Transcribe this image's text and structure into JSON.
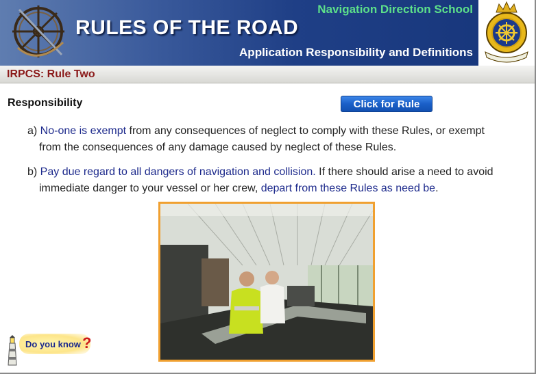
{
  "header": {
    "school_name": "Navigation Direction School",
    "title": "RULES OF THE ROAD",
    "subtitle": "Application Responsibility and Definitions"
  },
  "rule_bar": {
    "label": "IRPCS: Rule Two"
  },
  "content": {
    "heading": "Responsibility",
    "rule_button_label": "Click for Rule",
    "para_a": {
      "prefix": "a) ",
      "highlight": "No-one is exempt",
      "rest_line1": " from any consequences of neglect to comply with these Rules, or exempt",
      "line2": "from the consequences of any damage caused by neglect of these Rules."
    },
    "para_b": {
      "prefix": "b) ",
      "highlight1": "Pay due regard to all dangers of navigation and collision.",
      "rest_line1": "  If there should arise a need to avoid",
      "line2_start": "immediate danger to your vessel or her crew, ",
      "highlight2": "depart from these Rules as need be",
      "line2_end": "."
    }
  },
  "did_you_know": {
    "label": "Do you know",
    "mark": "?"
  },
  "colors": {
    "banner": "#1f3f86",
    "school_name": "#5de08a",
    "rule_label": "#8b1a1a",
    "highlight_text": "#1d2a8c",
    "button": "#1a5fc8",
    "photo_border": "#f0a030"
  },
  "icons": {
    "banner": "ship-wheel-sextant-icon",
    "crest": "navy-crest-icon",
    "lighthouse": "lighthouse-icon"
  }
}
